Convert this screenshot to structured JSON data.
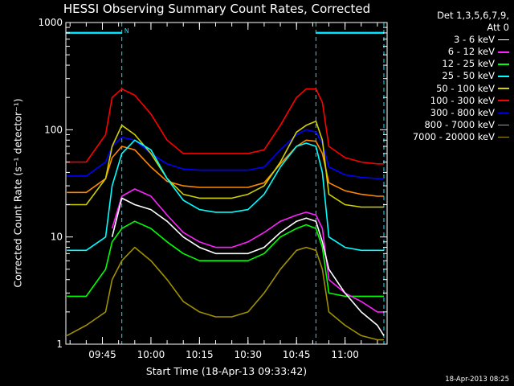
{
  "chart_data": {
    "type": "line",
    "title": "HESSI Observing Summary Count Rates, Corrected",
    "xlabel": "Start Time (18-Apr-13 09:33:42)",
    "ylabel": "Corrected Count Rate (s⁻¹ detector⁻¹)",
    "yscale": "log",
    "ylim": [
      1,
      1000
    ],
    "xlim": [
      "09:33:42",
      "11:13:00"
    ],
    "x_ticks": [
      "09:45",
      "10:00",
      "10:15",
      "10:30",
      "10:45",
      "11:00"
    ],
    "y_ticks": [
      "1",
      "10",
      "100",
      "1000"
    ],
    "legend_header": "Det 1,3,5,6,7,9,\nAtt 0",
    "legend_position": "right",
    "markers": [
      {
        "time": "09:51:00",
        "label": "N",
        "color": "#00e5ff"
      },
      {
        "time": "10:51:00",
        "label": "",
        "color": "#00e5ff"
      },
      {
        "time": "11:12:00",
        "label": "",
        "color": "#00e5ff"
      }
    ],
    "night_bars": [
      {
        "start": "09:33:42",
        "end": "09:51:00",
        "value": 800
      },
      {
        "start": "10:51:00",
        "end": "11:12:00",
        "value": 800
      }
    ],
    "x": [
      "09:34",
      "09:40",
      "09:46",
      "09:48",
      "09:51",
      "09:55",
      "10:00",
      "10:05",
      "10:10",
      "10:15",
      "10:20",
      "10:25",
      "10:30",
      "10:35",
      "10:40",
      "10:45",
      "10:48",
      "10:51",
      "10:53",
      "10:55",
      "11:00",
      "11:05",
      "11:10",
      "11:12"
    ],
    "series": [
      {
        "name": "3 - 6 keV",
        "color": "#ffffff",
        "values": [
          null,
          null,
          null,
          10,
          23,
          20,
          18,
          14,
          10,
          8,
          7,
          7,
          7,
          8,
          11,
          14,
          15,
          14,
          9,
          5,
          3,
          2,
          1.5,
          1.2
        ]
      },
      {
        "name": "6 - 12 keV",
        "color": "#ff22ff",
        "values": [
          null,
          null,
          null,
          12,
          24,
          28,
          24,
          16,
          11,
          9,
          8,
          8,
          9,
          11,
          14,
          16,
          17,
          16,
          12,
          4,
          3,
          2.5,
          2,
          2
        ]
      },
      {
        "name": "12 - 25 keV",
        "color": "#00ff00",
        "values": [
          2.8,
          2.8,
          5,
          9,
          12,
          14,
          12,
          9,
          7,
          6,
          6,
          6,
          6,
          7,
          10,
          12,
          13,
          12,
          8,
          3,
          2.8,
          2.8,
          2.8,
          2.8
        ]
      },
      {
        "name": "25 - 50 keV",
        "color": "#00ffff",
        "values": [
          7.5,
          7.5,
          10,
          30,
          60,
          80,
          65,
          35,
          22,
          18,
          17,
          17,
          18,
          25,
          45,
          70,
          75,
          70,
          40,
          10,
          8,
          7.5,
          7.5,
          7.5
        ]
      },
      {
        "name": "50 - 100 keV",
        "color": "#d0d000",
        "values": [
          20,
          20,
          35,
          70,
          110,
          90,
          60,
          35,
          25,
          23,
          23,
          23,
          25,
          30,
          50,
          95,
          110,
          120,
          80,
          25,
          20,
          19,
          19,
          19
        ]
      },
      {
        "name": "100 - 300 keV",
        "color": "#ff0000",
        "values": [
          50,
          50,
          90,
          200,
          240,
          210,
          140,
          80,
          60,
          60,
          60,
          60,
          60,
          65,
          110,
          200,
          240,
          240,
          180,
          70,
          55,
          50,
          48,
          48
        ]
      },
      {
        "name": "300 - 800 keV",
        "color": "#0000ff",
        "values": [
          37,
          37,
          50,
          70,
          85,
          80,
          60,
          48,
          43,
          42,
          42,
          42,
          42,
          45,
          65,
          90,
          100,
          95,
          75,
          45,
          38,
          36,
          35,
          35
        ]
      },
      {
        "name": "800 - 7000 keV",
        "color": "#ff8800",
        "values": [
          26,
          26,
          35,
          55,
          70,
          65,
          45,
          33,
          30,
          29,
          29,
          29,
          29,
          32,
          48,
          70,
          80,
          78,
          60,
          32,
          27,
          25,
          24,
          24
        ]
      },
      {
        "name": "7000 - 20000 keV",
        "color": "#a09000",
        "values": [
          1.2,
          1.5,
          2,
          4,
          6,
          8,
          6,
          4,
          2.5,
          2,
          1.8,
          1.8,
          2,
          3,
          5,
          7.5,
          8,
          7.5,
          5,
          2,
          1.5,
          1.2,
          1.1,
          1.1
        ]
      }
    ]
  },
  "footer": {
    "timestamp": "18-Apr-2013 08:25"
  }
}
